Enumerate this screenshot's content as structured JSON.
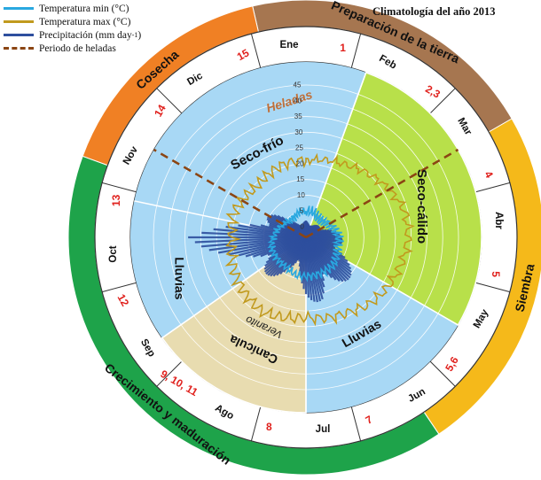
{
  "title": "Climatología del año 2013",
  "legend": [
    {
      "label": "Temperatura  min (°C)",
      "color": "#29a8e0",
      "dash": false
    },
    {
      "label": "Temperatura  max (°C)",
      "color": "#c19a1e",
      "dash": false
    },
    {
      "label": "Precipitación  (mm day",
      "sup": "-1",
      "suffix": ")",
      "color": "#2e4f9e",
      "dash": false
    },
    {
      "label": "Periodo de heladas",
      "color": "#8b4513",
      "dash": true
    }
  ],
  "colors": {
    "outer_orange": "#f08024",
    "outer_brown": "#a67650",
    "outer_yellow": "#f5b91a",
    "outer_green": "#1ea34a",
    "sector_blue": "#a8d8f5",
    "sector_green": "#b8e04a",
    "sector_tan": "#e8dcb0",
    "frost_line": "#8b4513",
    "label_red": "#e0201c"
  },
  "activities": [
    {
      "label": "Preparación de la tierra",
      "start_deg": -13,
      "end_deg": 60,
      "color": "#a67650"
    },
    {
      "label": "Siembra",
      "start_deg": 60,
      "end_deg": 146,
      "color": "#f5b91a"
    },
    {
      "label": "Crecimiento y maduración",
      "start_deg": 146,
      "end_deg": 290,
      "color": "#1ea34a"
    },
    {
      "label": "Cosecha",
      "start_deg": 290,
      "end_deg": 347,
      "color": "#f08024"
    }
  ],
  "months": [
    {
      "name": "Ene",
      "week": "1"
    },
    {
      "name": "Feb",
      "week": "2,3"
    },
    {
      "name": "Mar",
      "week": "4"
    },
    {
      "name": "Abr",
      "week": "5"
    },
    {
      "name": "May",
      "week": "5,6"
    },
    {
      "name": "Jun",
      "week": "7"
    },
    {
      "name": "Jul",
      "week": "8"
    },
    {
      "name": "Ago",
      "week": "9, 10, 11"
    },
    {
      "name": "Sep",
      "week": "12"
    },
    {
      "name": "Oct",
      "week": "13"
    },
    {
      "name": "Nov",
      "week": "14"
    },
    {
      "name": "Dic",
      "week": "15"
    }
  ],
  "seasons": [
    {
      "label": "Seco-frío",
      "start_deg": 245,
      "end_deg": 360,
      "color": "#a8d8f5"
    },
    {
      "label": "Heladas",
      "start_deg": 0,
      "end_deg": 0,
      "color": "#a8d8f5"
    },
    {
      "label": "Seco-cálido",
      "start_deg": 0,
      "end_deg": 120,
      "color": "#b8e04a"
    },
    {
      "label": "Lluvias",
      "start_deg": 120,
      "end_deg": 180,
      "color": "#a8d8f5"
    },
    {
      "label": "Canícula",
      "start_deg": 180,
      "end_deg": 235,
      "color": "#e8dcb0"
    },
    {
      "label": "Veranito",
      "start_deg": 0,
      "end_deg": 0,
      "color": "#e8dcb0"
    },
    {
      "label": "Lluvias",
      "start_deg": 235,
      "end_deg": 300,
      "color": "#a8d8f5"
    }
  ],
  "chart_data": {
    "type": "radial",
    "title": "Climatología del año 2013",
    "r_ticks": [
      "0",
      "5",
      "10",
      "15",
      "20",
      "25",
      "30",
      "35",
      "40",
      "45"
    ],
    "r_range": [
      0,
      45
    ],
    "frost_period_deg": [
      300,
      60
    ],
    "series": [
      {
        "name": "Temperatura  min (°C)",
        "color": "#29a8e0",
        "angles_deg": [
          0,
          15,
          30,
          45,
          60,
          75,
          90,
          105,
          120,
          135,
          150,
          165,
          180,
          195,
          210,
          225,
          240,
          255,
          270,
          285,
          300,
          315,
          330,
          345
        ],
        "values": [
          5,
          5,
          4,
          4,
          5,
          6,
          7,
          7,
          8,
          9,
          9,
          9,
          9,
          9,
          8,
          8,
          8,
          8,
          7,
          6,
          5,
          4,
          4,
          5
        ]
      },
      {
        "name": "Temperatura  max (°C)",
        "color": "#c19a1e",
        "angles_deg": [
          0,
          15,
          30,
          45,
          60,
          75,
          90,
          105,
          120,
          135,
          150,
          165,
          180,
          195,
          210,
          225,
          240,
          255,
          270,
          285,
          300,
          315,
          330,
          345
        ],
        "values": [
          21,
          22,
          23,
          25,
          27,
          29,
          29,
          28,
          27,
          26,
          24,
          23,
          22,
          23,
          24,
          23,
          22,
          21,
          20,
          21,
          20,
          19,
          20,
          21
        ]
      },
      {
        "name": "Precipitación  (mm day-1)",
        "color": "#2e4f9e",
        "angles_deg": [
          0,
          15,
          30,
          45,
          60,
          75,
          90,
          105,
          120,
          135,
          150,
          165,
          180,
          195,
          210,
          225,
          240,
          255,
          270,
          285,
          300,
          315,
          330,
          345
        ],
        "values": [
          2,
          1,
          1,
          2,
          3,
          6,
          8,
          12,
          14,
          16,
          18,
          20,
          15,
          8,
          10,
          14,
          18,
          22,
          34,
          20,
          12,
          4,
          2,
          1
        ]
      }
    ]
  }
}
